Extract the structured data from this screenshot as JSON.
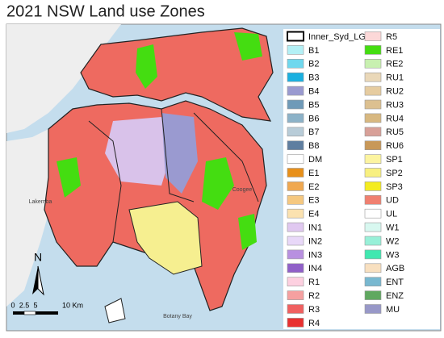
{
  "title": "2021 NSW Land use Zones",
  "legend": {
    "items": [
      {
        "label": "Inner_Syd_LGAs",
        "color": "#ffffff"
      },
      {
        "label": "B1",
        "color": "#b3f0f5"
      },
      {
        "label": "B2",
        "color": "#6fd8ee"
      },
      {
        "label": "B3",
        "color": "#1ab0e0"
      },
      {
        "label": "B4",
        "color": "#9a9ad0"
      },
      {
        "label": "B5",
        "color": "#6f9ab8"
      },
      {
        "label": "B6",
        "color": "#8cb2c8"
      },
      {
        "label": "B7",
        "color": "#b8ccd8"
      },
      {
        "label": "B8",
        "color": "#5f7ea0"
      },
      {
        "label": "DM",
        "color": "#ffffff"
      },
      {
        "label": "E1",
        "color": "#e8901a"
      },
      {
        "label": "E2",
        "color": "#f0a850"
      },
      {
        "label": "E3",
        "color": "#f5c880"
      },
      {
        "label": "E4",
        "color": "#fbe2b0"
      },
      {
        "label": "IN1",
        "color": "#e0c8f0"
      },
      {
        "label": "IN2",
        "color": "#e8d8f8"
      },
      {
        "label": "IN3",
        "color": "#b890e0"
      },
      {
        "label": "IN4",
        "color": "#9060c8"
      },
      {
        "label": "R1",
        "color": "#fdd0e0"
      },
      {
        "label": "R2",
        "color": "#f5a0a0"
      },
      {
        "label": "R3",
        "color": "#f06060"
      },
      {
        "label": "R4",
        "color": "#e83030"
      },
      {
        "label": "R5",
        "color": "#fcd8d8"
      },
      {
        "label": "RE1",
        "color": "#44dd11"
      },
      {
        "label": "RE2",
        "color": "#c8f0b0"
      },
      {
        "label": "RU1",
        "color": "#ead8b8"
      },
      {
        "label": "RU2",
        "color": "#e6cca0"
      },
      {
        "label": "RU3",
        "color": "#dcc090"
      },
      {
        "label": "RU4",
        "color": "#d8b880"
      },
      {
        "label": "RU5",
        "color": "#d8a098"
      },
      {
        "label": "RU6",
        "color": "#c89858"
      },
      {
        "label": "SP1",
        "color": "#fcf4a0"
      },
      {
        "label": "SP2",
        "color": "#f8f080"
      },
      {
        "label": "SP3",
        "color": "#f4ec20"
      },
      {
        "label": "UD",
        "color": "#f08070"
      },
      {
        "label": "UL",
        "color": "#ffffff"
      },
      {
        "label": "W1",
        "color": "#d8f8f0"
      },
      {
        "label": "W2",
        "color": "#98f0d8"
      },
      {
        "label": "W3",
        "color": "#40e8b0"
      },
      {
        "label": "AGB",
        "color": "#f8e0c0"
      },
      {
        "label": "ENT",
        "color": "#78b8d0"
      },
      {
        "label": "ENZ",
        "color": "#60a860"
      },
      {
        "label": "MU",
        "color": "#9898c8"
      }
    ]
  },
  "north": "N",
  "scale_bar": {
    "labels": [
      "0",
      "2.5",
      "5",
      "10 Km"
    ]
  },
  "place_labels": [
    "Lakemba",
    "Coogee",
    "Botany Bay"
  ]
}
